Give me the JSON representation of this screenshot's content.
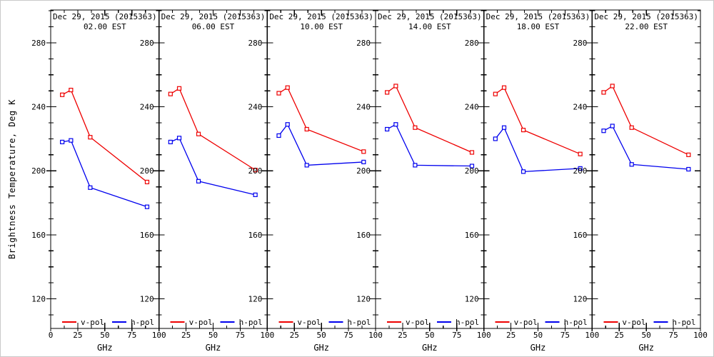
{
  "colors": {
    "axis": "#000000",
    "background": "#ffffff",
    "v_pol": "#ee0000",
    "h_pol": "#0000ee"
  },
  "chart_data": {
    "type": "line",
    "ylabel": "Brightness Temperature, Deg K",
    "xlabel": "GHz",
    "x": [
      10.65,
      18.7,
      36.5,
      89.0
    ],
    "xlim": [
      0,
      100
    ],
    "ylim": [
      101.5,
      300.5
    ],
    "x_major_ticks": [
      0,
      25,
      50,
      75,
      100
    ],
    "x_minor_ticks": [
      12.5,
      37.5,
      62.5,
      87.5
    ],
    "y_major_ticks": [
      120,
      160,
      200,
      240,
      280
    ],
    "y_minor_step": 10,
    "grid": false,
    "legend_position": "bottom-inside",
    "legend": [
      {
        "label": "v-pol",
        "color": "#ee0000"
      },
      {
        "label": "h-pol",
        "color": "#0000ee"
      }
    ],
    "marker": "open-square",
    "panels": [
      {
        "title": "Dec 29, 2015 (2015363)",
        "subtitle": "02.00 EST",
        "series": [
          {
            "name": "v-pol",
            "color": "#ee0000",
            "values": [
              247.5,
              250.5,
              221.0,
              193.0
            ]
          },
          {
            "name": "h-pol",
            "color": "#0000ee",
            "values": [
              218.0,
              219.0,
              189.5,
              177.5
            ]
          }
        ]
      },
      {
        "title": "Dec 29, 2015 (2015363)",
        "subtitle": "06.00 EST",
        "series": [
          {
            "name": "v-pol",
            "color": "#ee0000",
            "values": [
              248.0,
              251.5,
              223.0,
              200.5
            ]
          },
          {
            "name": "h-pol",
            "color": "#0000ee",
            "values": [
              218.0,
              220.5,
              193.5,
              185.0
            ]
          }
        ]
      },
      {
        "title": "Dec 29, 2015 (2015363)",
        "subtitle": "10.00 EST",
        "series": [
          {
            "name": "v-pol",
            "color": "#ee0000",
            "values": [
              248.5,
              252.0,
              226.0,
              212.0
            ]
          },
          {
            "name": "h-pol",
            "color": "#0000ee",
            "values": [
              222.0,
              229.0,
              203.5,
              205.5
            ]
          }
        ]
      },
      {
        "title": "Dec 29, 2015 (2015363)",
        "subtitle": "14.00 EST",
        "series": [
          {
            "name": "v-pol",
            "color": "#ee0000",
            "values": [
              249.0,
              253.0,
              227.0,
              211.5
            ]
          },
          {
            "name": "h-pol",
            "color": "#0000ee",
            "values": [
              226.0,
              229.0,
              203.5,
              203.0
            ]
          }
        ]
      },
      {
        "title": "Dec 29, 2015 (2015363)",
        "subtitle": "18.00 EST",
        "series": [
          {
            "name": "v-pol",
            "color": "#ee0000",
            "values": [
              248.0,
              252.0,
              225.5,
              210.5
            ]
          },
          {
            "name": "h-pol",
            "color": "#0000ee",
            "values": [
              220.0,
              227.0,
              199.5,
              201.5
            ]
          }
        ]
      },
      {
        "title": "Dec 29, 2015 (2015363)",
        "subtitle": "22.00 EST",
        "series": [
          {
            "name": "v-pol",
            "color": "#ee0000",
            "values": [
              249.0,
              253.0,
              227.0,
              210.0
            ]
          },
          {
            "name": "h-pol",
            "color": "#0000ee",
            "values": [
              225.0,
              228.0,
              204.0,
              201.0
            ]
          }
        ]
      }
    ]
  }
}
